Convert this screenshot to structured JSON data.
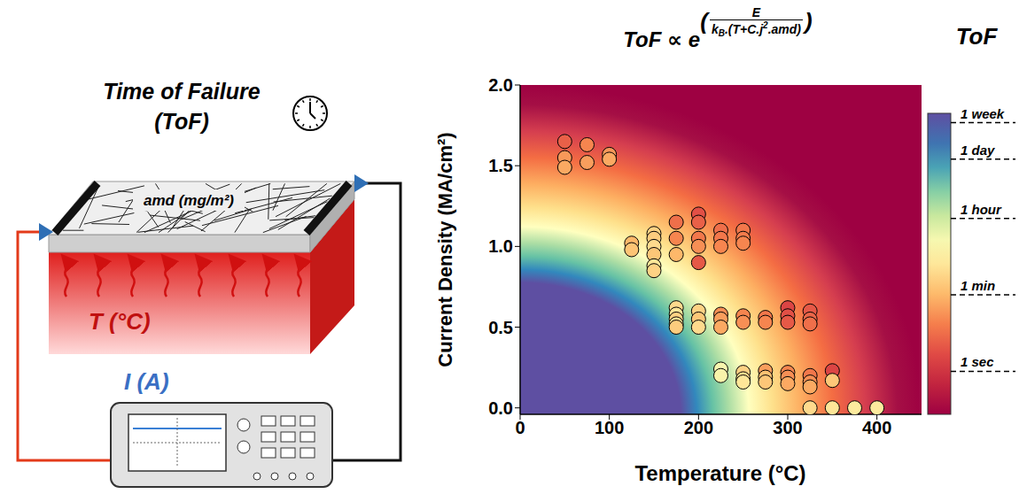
{
  "chart_data": {
    "type": "scatter",
    "title": {
      "prefix": "ToF ∝ e",
      "numerator": "E",
      "denominator": [
        {
          "text": "k"
        },
        {
          "sub": "B"
        },
        {
          "text": ".(T+C.j"
        },
        {
          "sup": "2"
        },
        {
          "text": ".amd)"
        }
      ]
    },
    "x_label": "Temperature (°C)",
    "y_label": "Current Density (MA/cm²)",
    "xlim": [
      0,
      450
    ],
    "xticks": [
      0,
      100,
      200,
      300,
      400
    ],
    "ylim": [
      -0.04,
      2.0
    ],
    "yticks": [
      {
        "value": 0,
        "label": "0.0"
      },
      {
        "value": 0.5,
        "label": "0.5"
      },
      {
        "value": 1,
        "label": "1.0"
      },
      {
        "value": 1.5,
        "label": "1.5"
      },
      {
        "value": 2,
        "label": "2.0"
      }
    ],
    "grid": false,
    "marker": "circle",
    "x": [
      50,
      50,
      50,
      75,
      75,
      100,
      100,
      125,
      125,
      150,
      150,
      150,
      150,
      150,
      150,
      175,
      175,
      175,
      200,
      200,
      200,
      200,
      200,
      225,
      225,
      225,
      250,
      250,
      250,
      175,
      175,
      175,
      175,
      175,
      200,
      200,
      200,
      225,
      225,
      225,
      250,
      250,
      275,
      275,
      300,
      300,
      300,
      325,
      325,
      325,
      225,
      225,
      250,
      250,
      250,
      275,
      275,
      275,
      300,
      300,
      300,
      325,
      325,
      325,
      350,
      350,
      325,
      350,
      375,
      400
    ],
    "y": [
      1.65,
      1.55,
      1.49,
      1.63,
      1.52,
      1.57,
      1.54,
      1.02,
      0.98,
      1.08,
      1.05,
      1.0,
      0.95,
      0.88,
      0.85,
      1.15,
      1.05,
      0.95,
      1.2,
      1.15,
      1.05,
      1.0,
      0.9,
      1.1,
      1.05,
      1.0,
      1.1,
      1.05,
      1.02,
      0.62,
      0.58,
      0.55,
      0.52,
      0.5,
      0.6,
      0.55,
      0.5,
      0.58,
      0.55,
      0.5,
      0.57,
      0.53,
      0.56,
      0.53,
      0.62,
      0.57,
      0.53,
      0.6,
      0.55,
      0.52,
      0.24,
      0.2,
      0.22,
      0.18,
      0.16,
      0.23,
      0.19,
      0.16,
      0.22,
      0.19,
      0.15,
      0.2,
      0.16,
      0.13,
      0.23,
      0.17,
      0,
      0,
      0,
      0
    ],
    "tof": [
      5,
      25,
      40,
      15,
      30,
      25,
      40,
      60,
      90,
      150,
      120,
      200,
      100,
      300,
      150,
      8,
      15,
      60,
      3,
      5,
      10,
      20,
      4,
      8,
      10,
      15,
      10,
      12,
      15,
      200,
      300,
      150,
      250,
      120,
      150,
      100,
      200,
      20,
      30,
      40,
      15,
      20,
      10,
      15,
      2,
      3,
      4,
      4,
      6,
      8,
      1000,
      800,
      150,
      200,
      300,
      30,
      80,
      100,
      15,
      20,
      40,
      10,
      20,
      40,
      2,
      100,
      200,
      300,
      400,
      400
    ],
    "colorbar": {
      "title": "ToF",
      "log": true,
      "lim": [
        0.1,
        1000000
      ],
      "ticks": [
        {
          "value": 1,
          "label": "1 sec"
        },
        {
          "value": 60,
          "label": "1 min"
        },
        {
          "value": 3600,
          "label": "1 hour"
        },
        {
          "value": 86400,
          "label": "1 day"
        },
        {
          "value": 604800,
          "label": "1 week"
        }
      ]
    }
  },
  "diagram": {
    "title_lines": [
      "Time of Failure",
      "(ToF)"
    ],
    "film_label": "amd (mg/m²)",
    "temperature_label": "T (°C)",
    "current_label": "I (A)"
  }
}
